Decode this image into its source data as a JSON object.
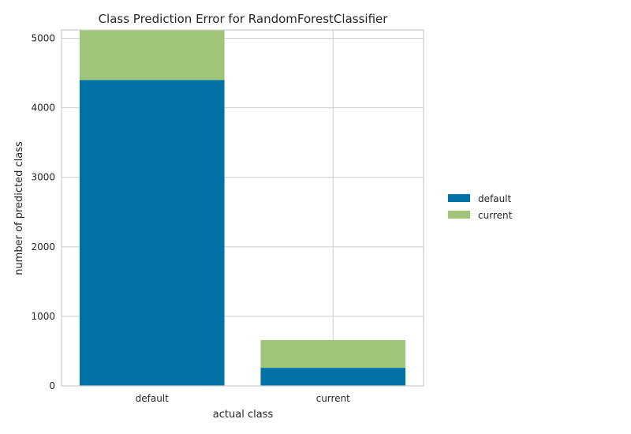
{
  "chart_data": {
    "type": "bar",
    "stacked": true,
    "title": "Class Prediction Error for RandomForestClassifier",
    "xlabel": "actual class",
    "ylabel": "number of predicted class",
    "categories": [
      "default",
      "current"
    ],
    "series": [
      {
        "name": "default",
        "values": [
          4400,
          260
        ],
        "color": "#0072a8"
      },
      {
        "name": "current",
        "values": [
          720,
          400
        ],
        "color": "#9fc47a"
      }
    ],
    "ylim": [
      0,
      5120
    ],
    "yticks": [
      0,
      1000,
      2000,
      3000,
      4000,
      5000
    ],
    "grid": true,
    "legend_position": "right"
  }
}
